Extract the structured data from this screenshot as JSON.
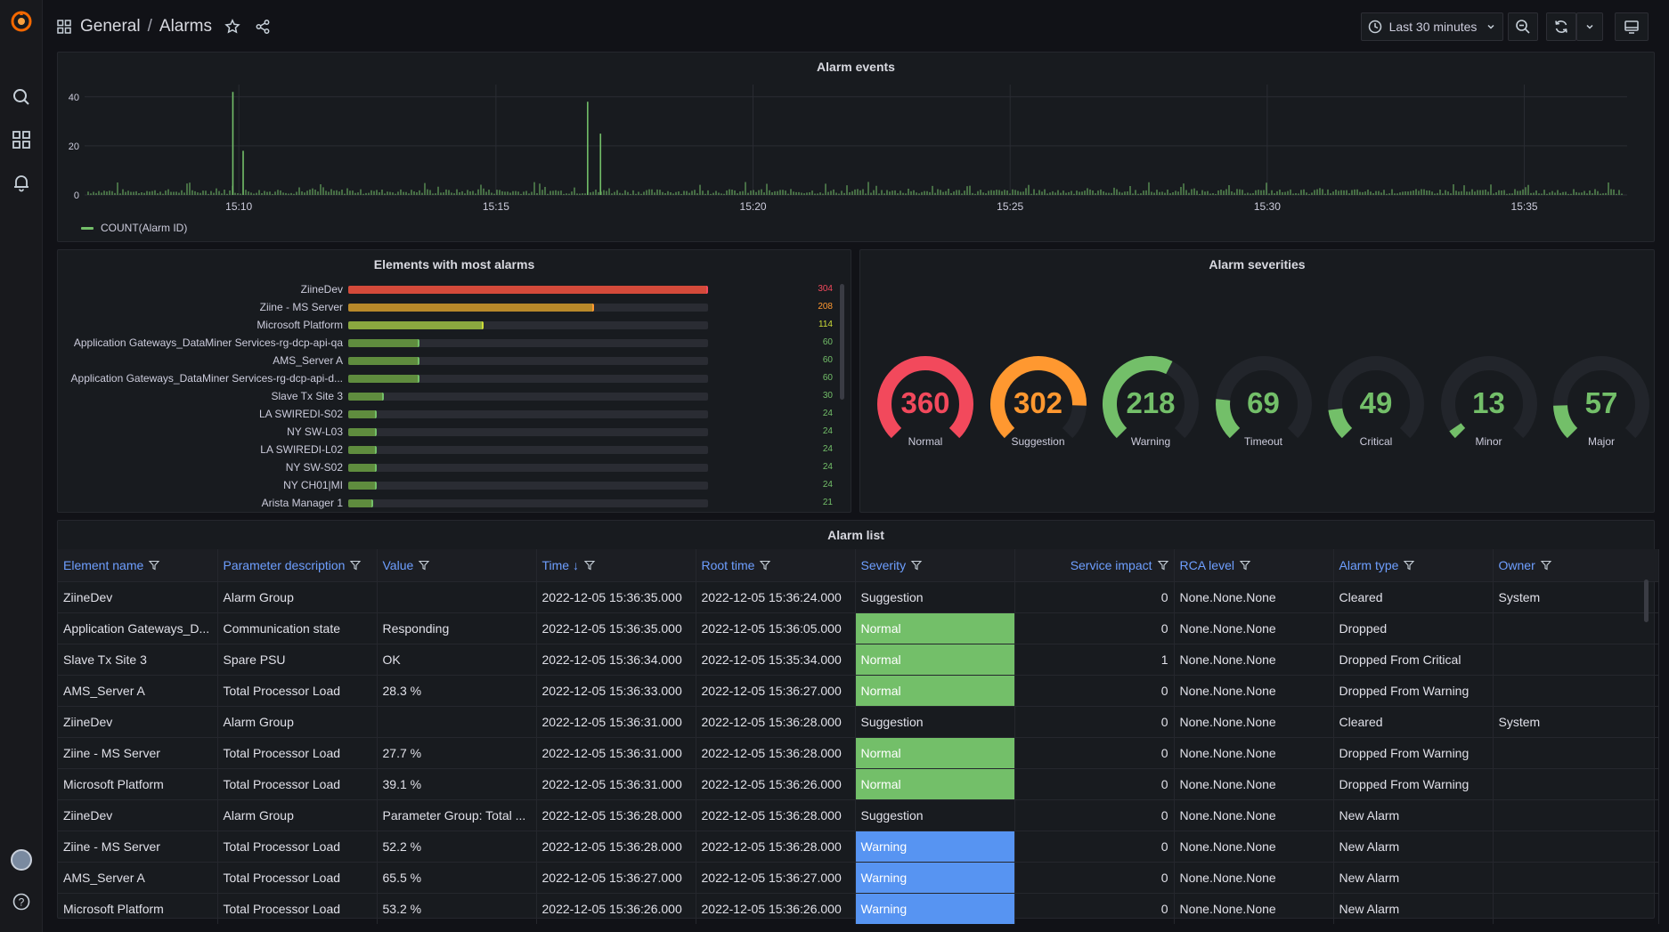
{
  "breadcrumb": {
    "folder": "General",
    "dashboard": "Alarms"
  },
  "toolbar": {
    "time_range": "Last 30 minutes"
  },
  "colors": {
    "normal": "#73bf69",
    "suggestion": "#ff9830",
    "critical": "#f2495c",
    "warning": "#5794f2",
    "bar_red": "#c4162a"
  },
  "alarm_events": {
    "title": "Alarm events",
    "legend": "COUNT(Alarm ID)",
    "chart_data": {
      "type": "bar",
      "x_ticks": [
        "15:10",
        "15:15",
        "15:20",
        "15:25",
        "15:30",
        "15:35"
      ],
      "y_ticks": [
        "0",
        "20",
        "40"
      ],
      "ylim": [
        0,
        45
      ],
      "spikes": [
        {
          "time": "15:09:53",
          "value": 42
        },
        {
          "time": "15:10:05",
          "value": 18
        },
        {
          "time": "15:16:47",
          "value": 38
        },
        {
          "time": "15:17:02",
          "value": 25
        }
      ],
      "baseline": "values mostly 1–4 per interval"
    }
  },
  "elements_panel": {
    "title": "Elements with most alarms",
    "chart_data": {
      "type": "bar",
      "max": 304,
      "rows": [
        {
          "name": "ZiineDev",
          "value": 304
        },
        {
          "name": "Ziine - MS Server",
          "value": 208
        },
        {
          "name": "Microsoft Platform",
          "value": 114
        },
        {
          "name": "Application Gateways_DataMiner Services-rg-dcp-api-qa",
          "value": 60
        },
        {
          "name": "AMS_Server A",
          "value": 60
        },
        {
          "name": "Application Gateways_DataMiner Services-rg-dcp-api-d...",
          "value": 60
        },
        {
          "name": "Slave Tx Site 3",
          "value": 30
        },
        {
          "name": "LA SWIREDI-S02",
          "value": 24
        },
        {
          "name": "NY SW-L03",
          "value": 24
        },
        {
          "name": "LA SWIREDI-L02",
          "value": 24
        },
        {
          "name": "NY SW-S02",
          "value": 24
        },
        {
          "name": "NY CH01|MI",
          "value": 24
        },
        {
          "name": "Arista Manager 1",
          "value": 21
        }
      ]
    }
  },
  "severities_panel": {
    "title": "Alarm severities",
    "gauges": [
      {
        "label": "Normal",
        "value": 360,
        "fraction": 1.0,
        "color": "#f2495c"
      },
      {
        "label": "Suggestion",
        "value": 302,
        "fraction": 0.84,
        "color": "#ff9830"
      },
      {
        "label": "Warning",
        "value": 218,
        "fraction": 0.6,
        "color": "#73bf69"
      },
      {
        "label": "Timeout",
        "value": 69,
        "fraction": 0.19,
        "color": "#73bf69"
      },
      {
        "label": "Critical",
        "value": 49,
        "fraction": 0.14,
        "color": "#73bf69"
      },
      {
        "label": "Minor",
        "value": 13,
        "fraction": 0.04,
        "color": "#73bf69"
      },
      {
        "label": "Major",
        "value": 57,
        "fraction": 0.16,
        "color": "#73bf69"
      }
    ]
  },
  "alarm_list": {
    "title": "Alarm list",
    "columns": [
      "Element name",
      "Parameter description",
      "Value",
      "Time",
      "Root time",
      "Severity",
      "Service impact",
      "RCA level",
      "Alarm type",
      "Owner"
    ],
    "rows": [
      [
        "ZiineDev",
        "Alarm Group",
        "",
        "2022-12-05 15:36:35.000",
        "2022-12-05 15:36:24.000",
        "Suggestion",
        "0",
        "None.None.None",
        "Cleared",
        "System"
      ],
      [
        "Application Gateways_D...",
        "Communication state",
        "Responding",
        "2022-12-05 15:36:35.000",
        "2022-12-05 15:36:05.000",
        "Normal",
        "0",
        "None.None.None",
        "Dropped",
        ""
      ],
      [
        "Slave Tx Site 3",
        "Spare PSU",
        "OK",
        "2022-12-05 15:36:34.000",
        "2022-12-05 15:35:34.000",
        "Normal",
        "1",
        "None.None.None",
        "Dropped From Critical",
        ""
      ],
      [
        "AMS_Server A",
        "Total Processor Load",
        "28.3 %",
        "2022-12-05 15:36:33.000",
        "2022-12-05 15:36:27.000",
        "Normal",
        "0",
        "None.None.None",
        "Dropped From Warning",
        ""
      ],
      [
        "ZiineDev",
        "Alarm Group",
        "",
        "2022-12-05 15:36:31.000",
        "2022-12-05 15:36:28.000",
        "Suggestion",
        "0",
        "None.None.None",
        "Cleared",
        "System"
      ],
      [
        "Ziine - MS Server",
        "Total Processor Load",
        "27.7 %",
        "2022-12-05 15:36:31.000",
        "2022-12-05 15:36:28.000",
        "Normal",
        "0",
        "None.None.None",
        "Dropped From Warning",
        ""
      ],
      [
        "Microsoft Platform",
        "Total Processor Load",
        "39.1 %",
        "2022-12-05 15:36:31.000",
        "2022-12-05 15:36:26.000",
        "Normal",
        "0",
        "None.None.None",
        "Dropped From Warning",
        ""
      ],
      [
        "ZiineDev",
        "Alarm Group",
        "Parameter Group: Total ...",
        "2022-12-05 15:36:28.000",
        "2022-12-05 15:36:28.000",
        "Suggestion",
        "0",
        "None.None.None",
        "New Alarm",
        ""
      ],
      [
        "Ziine - MS Server",
        "Total Processor Load",
        "52.2 %",
        "2022-12-05 15:36:28.000",
        "2022-12-05 15:36:28.000",
        "Warning",
        "0",
        "None.None.None",
        "New Alarm",
        ""
      ],
      [
        "AMS_Server A",
        "Total Processor Load",
        "65.5 %",
        "2022-12-05 15:36:27.000",
        "2022-12-05 15:36:27.000",
        "Warning",
        "0",
        "None.None.None",
        "New Alarm",
        ""
      ],
      [
        "Microsoft Platform",
        "Total Processor Load",
        "53.2 %",
        "2022-12-05 15:36:26.000",
        "2022-12-05 15:36:26.000",
        "Warning",
        "0",
        "None.None.None",
        "New Alarm",
        ""
      ]
    ]
  }
}
